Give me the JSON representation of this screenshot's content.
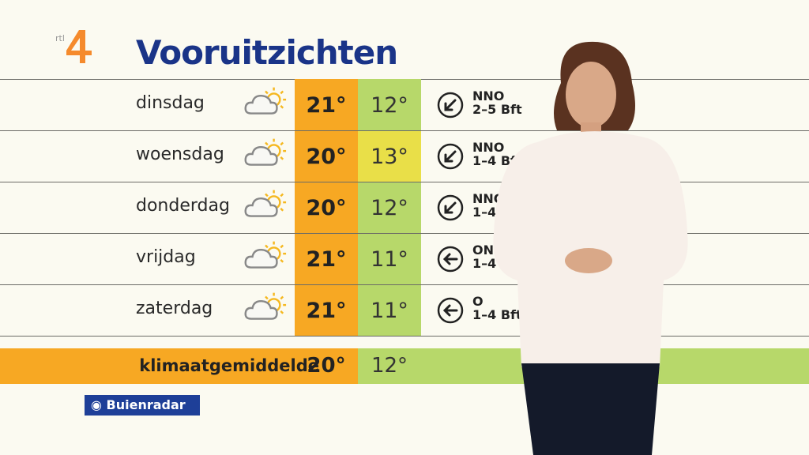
{
  "channel_logo": "rtl 4",
  "title": "Vooruitzichten",
  "colors": {
    "max_temp": "#f7a823",
    "min_temp_green": "#b7d86a",
    "min_temp_yellow": "#e9df48",
    "title": "#1a3488"
  },
  "forecast": [
    {
      "day": "dinsdag",
      "icon": "partly-cloudy-icon",
      "max": "21°",
      "min": "12°",
      "min_color": "#b7d86a",
      "wind_icon": "arrow-down-left-icon",
      "wind_dir": "NNO",
      "wind_force": "2–5 Bft"
    },
    {
      "day": "woensdag",
      "icon": "partly-cloudy-icon",
      "max": "20°",
      "min": "13°",
      "min_color": "#e9df48",
      "wind_icon": "arrow-down-left-icon",
      "wind_dir": "NNO",
      "wind_force": "1–4 Bft"
    },
    {
      "day": "donderdag",
      "icon": "partly-cloudy-icon",
      "max": "20°",
      "min": "12°",
      "min_color": "#b7d86a",
      "wind_icon": "arrow-down-left-icon",
      "wind_dir": "NNO",
      "wind_force": "1–4 Bft"
    },
    {
      "day": "vrijdag",
      "icon": "partly-cloudy-icon",
      "max": "21°",
      "min": "11°",
      "min_color": "#b7d86a",
      "wind_icon": "arrow-left-icon",
      "wind_dir": "ONO",
      "wind_force": "1–4 Bft"
    },
    {
      "day": "zaterdag",
      "icon": "partly-cloudy-icon",
      "max": "21°",
      "min": "11°",
      "min_color": "#b7d86a",
      "wind_icon": "arrow-left-icon",
      "wind_dir": "O",
      "wind_force": "1–4 Bft"
    }
  ],
  "climate": {
    "label": "klimaatgemiddelde",
    "max": "20°",
    "min": "12°"
  },
  "sponsor": "Buienradar"
}
